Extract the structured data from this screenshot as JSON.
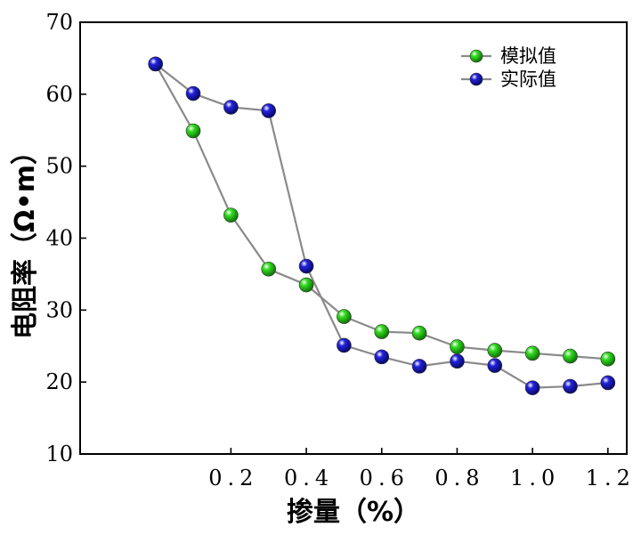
{
  "chart_data": {
    "type": "line",
    "title": "",
    "xlabel": "掺量（%）",
    "ylabel": "电阻率（Ω•m）",
    "xlim": [
      -0.2,
      1.25
    ],
    "ylim": [
      10,
      70
    ],
    "x_ticks": [
      0.2,
      0.4,
      0.6,
      0.8,
      1.0,
      1.2
    ],
    "x_tick_labels": [
      "0.2",
      "0.4",
      "0.6",
      "0.8",
      "1.0",
      "1.2"
    ],
    "y_ticks": [
      10,
      20,
      30,
      40,
      50,
      60,
      70
    ],
    "y_tick_labels": [
      "10",
      "20",
      "30",
      "40",
      "50",
      "60",
      "70"
    ],
    "legend_position": "top-right",
    "series": [
      {
        "name": "模拟值",
        "color": "#33dd22",
        "marker": "circle",
        "x": [
          0.0,
          0.1,
          0.2,
          0.3,
          0.4,
          0.5,
          0.6,
          0.7,
          0.8,
          0.9,
          1.0,
          1.1,
          1.2
        ],
        "values": [
          64.2,
          54.9,
          43.2,
          35.7,
          33.5,
          29.1,
          27.0,
          26.8,
          24.9,
          24.4,
          24.0,
          23.6,
          23.2
        ]
      },
      {
        "name": "实际值",
        "color": "#2222dd",
        "marker": "circle",
        "x": [
          0.0,
          0.1,
          0.2,
          0.3,
          0.4,
          0.5,
          0.6,
          0.7,
          0.8,
          0.9,
          1.0,
          1.1,
          1.2
        ],
        "values": [
          64.2,
          60.1,
          58.2,
          57.7,
          36.1,
          25.1,
          23.5,
          22.2,
          22.9,
          22.3,
          19.2,
          19.4,
          19.9
        ]
      }
    ]
  }
}
